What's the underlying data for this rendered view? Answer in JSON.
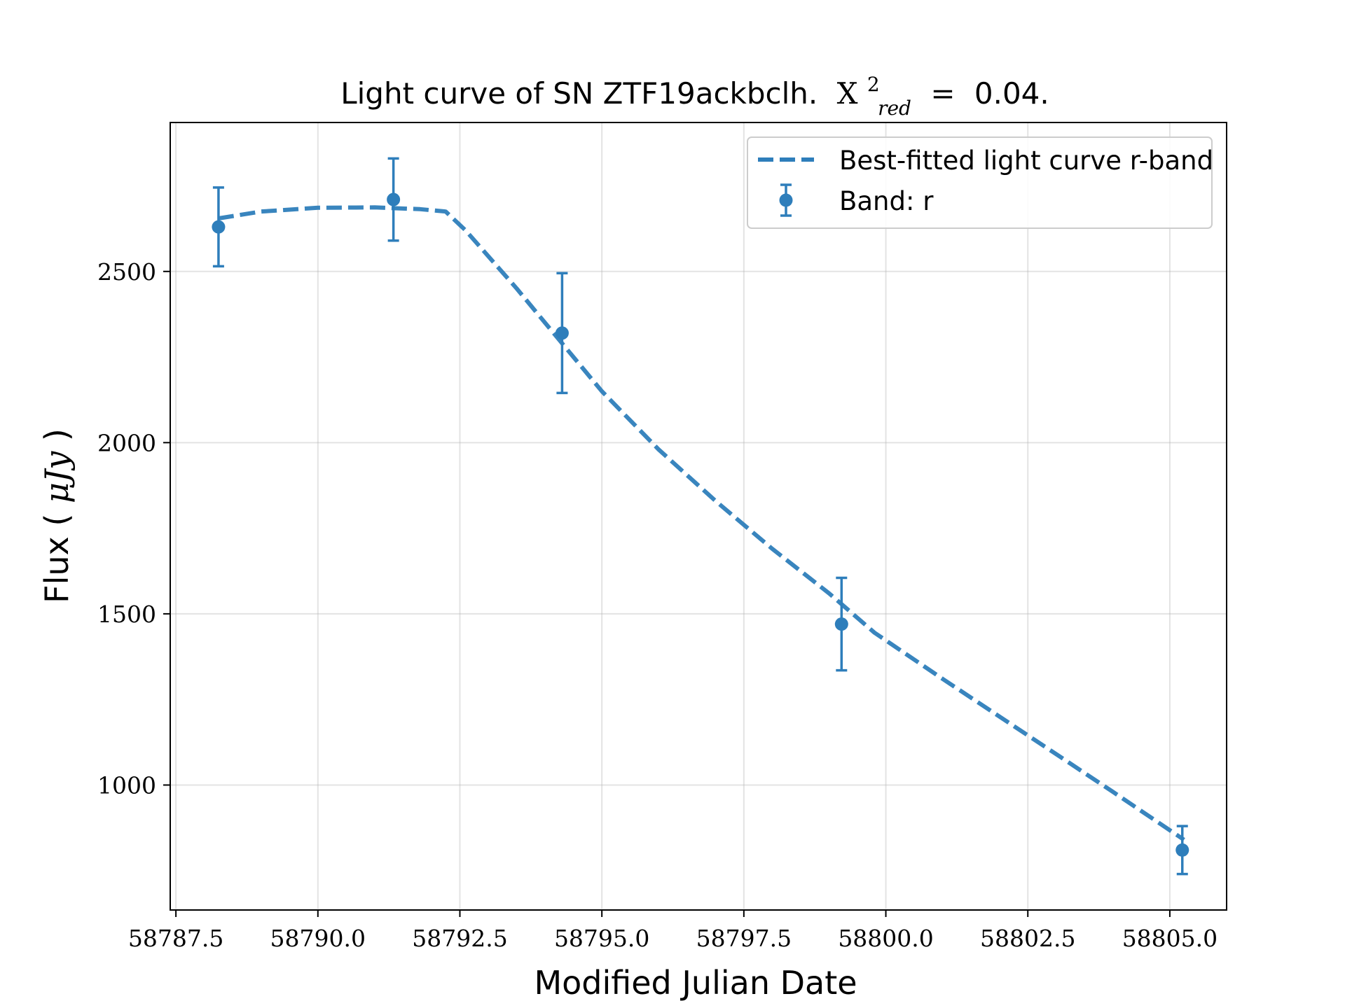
{
  "chart_data": {
    "type": "scatter",
    "title_prefix": "Light curve of SN ZTF19ackbclh.",
    "title_chi_symbol": "X",
    "title_chi_superscript": "2",
    "title_chi_subscript": "red",
    "title_equals": "=",
    "title_chi_value": "0.04.",
    "xlabel": "Modified Julian Date",
    "ylabel_prefix": "Flux (",
    "ylabel_unit": "μJy",
    "ylabel_suffix": ")",
    "xlim": [
      58787.4,
      58806.0
    ],
    "ylim": [
      635,
      2935
    ],
    "x_ticks": [
      58787.5,
      58790.0,
      58792.5,
      58795.0,
      58797.5,
      58800.0,
      58802.5,
      58805.0
    ],
    "x_tick_labels": [
      "58787.5",
      "58790.0",
      "58792.5",
      "58795.0",
      "58797.5",
      "58800.0",
      "58802.5",
      "58805.0"
    ],
    "y_ticks": [
      1000,
      1500,
      2000,
      2500
    ],
    "y_tick_labels": [
      "1000",
      "1500",
      "2000",
      "2500"
    ],
    "grid": true,
    "legend_position": "top-right",
    "color": "#2e7ebb",
    "series": [
      {
        "name": "Best-fitted light curve r-band",
        "style": "dashed-line",
        "x": [
          58788.25,
          58789.0,
          58790.0,
          58791.0,
          58791.8,
          58792.25,
          58792.6,
          58793.5,
          58794.3,
          58795.0,
          58796.0,
          58797.0,
          58798.0,
          58799.0,
          58799.8,
          58801.0,
          58802.0,
          58803.0,
          58804.0,
          58805.25
        ],
        "y": [
          2655,
          2675,
          2686,
          2687,
          2682,
          2675,
          2620,
          2450,
          2290,
          2150,
          1980,
          1830,
          1690,
          1560,
          1445,
          1310,
          1200,
          1090,
          980,
          840
        ]
      },
      {
        "name": "Band: r",
        "style": "errorbar-points",
        "x": [
          58788.25,
          58791.33,
          58794.3,
          58799.22,
          58805.22
        ],
        "y": [
          2630,
          2710,
          2320,
          1470,
          810
        ],
        "yerr": [
          115,
          120,
          175,
          135,
          70
        ]
      }
    ]
  }
}
